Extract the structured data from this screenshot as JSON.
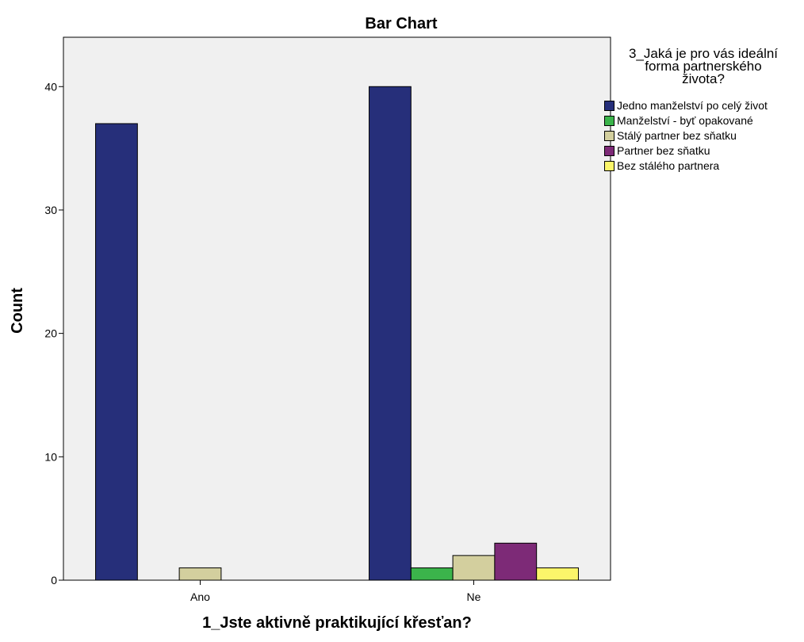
{
  "chart_data": {
    "type": "bar",
    "title": "Bar Chart",
    "xlabel": "1_Jste aktivně praktikující křesťan?",
    "ylabel": "Count",
    "categories": [
      "Ano",
      "Ne"
    ],
    "ylim": [
      0,
      44
    ],
    "yticks": [
      0,
      10,
      20,
      30,
      40
    ],
    "grid": false,
    "legend_position": "right",
    "legend_title": [
      "3_Jaká je pro vás ideální",
      "forma partnerského",
      "života?"
    ],
    "series": [
      {
        "name": "Jedno manželství po celý život",
        "color": "#262f7a",
        "values": [
          37,
          40
        ]
      },
      {
        "name": "Manželství - byť opakované",
        "color": "#3bb44b",
        "values": [
          0,
          1
        ]
      },
      {
        "name": "Stálý partner bez sňatku",
        "color": "#d3cf9e",
        "values": [
          1,
          2
        ]
      },
      {
        "name": "Partner bez sňatku",
        "color": "#7d2a77",
        "values": [
          0,
          3
        ]
      },
      {
        "name": "Bez stálého partnera",
        "color": "#fbf56a",
        "values": [
          0,
          1
        ]
      }
    ],
    "background_color": "#f0f0f0"
  }
}
